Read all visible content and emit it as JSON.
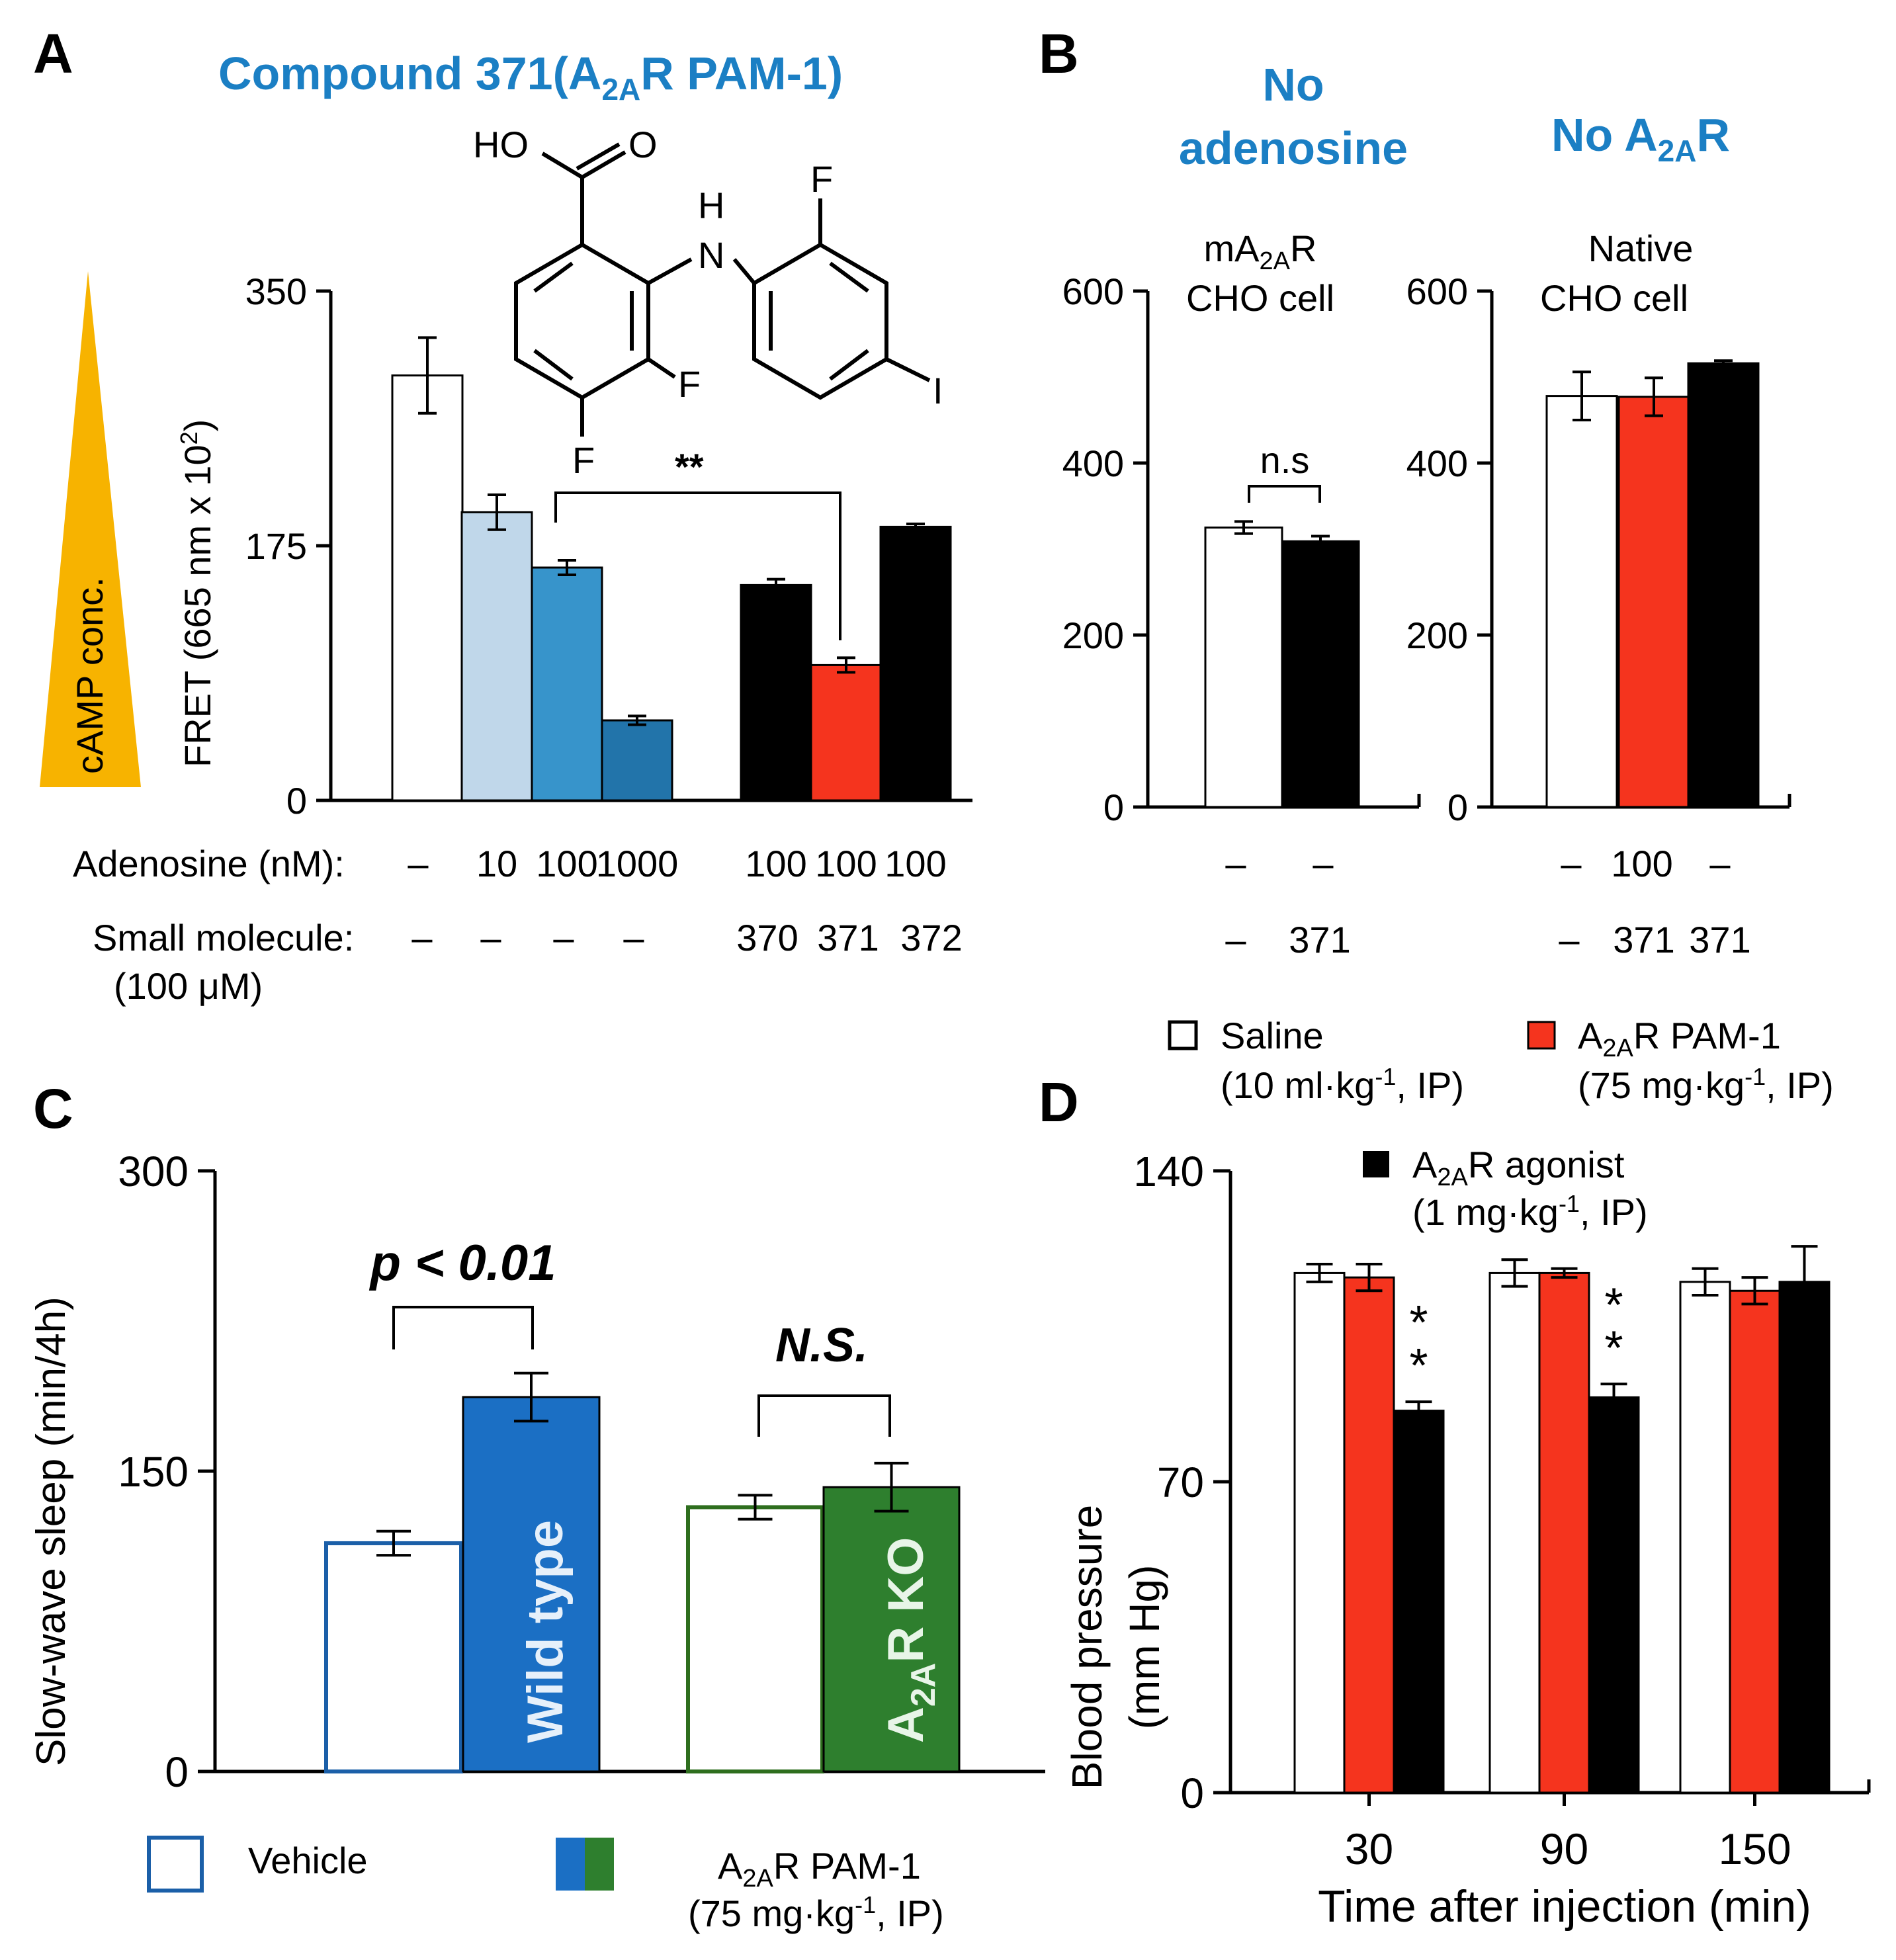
{
  "panels": {
    "A": {
      "label": "A",
      "title_main": "Compound 371(A",
      "title_sub": "2A",
      "title_end": "R PAM-1)",
      "triangle_label": "cAMP conc.",
      "triangle_color": "#f7b300",
      "ylabel": "FRET (665 nm x 10",
      "ylabel_sup": "2",
      "ylabel_end": ")",
      "structure_labels": [
        "HO",
        "O",
        "H",
        "N",
        "F",
        "F",
        "F",
        "I"
      ],
      "significance": "**",
      "row1_label": "Adenosine (nM):",
      "row1_values": [
        "–",
        "10",
        "100",
        "1000",
        "100",
        "100",
        "100"
      ],
      "row2_label": "Small molecule:",
      "row2_sub": "(100 μM)",
      "row2_values": [
        "–",
        "–",
        "–",
        "–",
        "370",
        "371",
        "372"
      ]
    },
    "B": {
      "label": "B",
      "title_left_1": "No",
      "title_left_2": "adenosine",
      "title_right_main": "No A",
      "title_right_sub": "2A",
      "title_right_end": "R",
      "left_cell_1": "mA",
      "left_cell_1_sub": "2A",
      "left_cell_1_end": "R",
      "left_cell_2": "CHO cell",
      "right_cell_1": "Native",
      "right_cell_2": "CHO cell",
      "ns_label": "n.s",
      "left_row1": [
        "–",
        "–"
      ],
      "left_row2": [
        "–",
        "371"
      ],
      "right_row1": [
        "–",
        "100",
        "–"
      ],
      "right_row2": [
        "–",
        "371",
        "371"
      ]
    },
    "C": {
      "label": "C",
      "ylabel": "Slow-wave sleep (min/4h)",
      "p_label": "p < 0.01",
      "ns_label": "N.S.",
      "wt_label": "Wild type",
      "ko_main": "A",
      "ko_sub": "2A",
      "ko_end": "R KO",
      "legend_vehicle": "Vehicle",
      "legend_pam_main": "A",
      "legend_pam_sub": "2A",
      "legend_pam_end": "R PAM-1",
      "legend_pam_dose": "(75 mg·kg",
      "legend_pam_dose_sup": "-1",
      "legend_pam_dose_end": ", IP)"
    },
    "D": {
      "label": "D",
      "ylabel_1": "Blood pressure",
      "ylabel_2": "(mm Hg)",
      "xlabel": "Time after injection (min)",
      "stars": "*",
      "legend_saline": "Saline",
      "legend_saline_dose": "(10 ml·kg",
      "legend_saline_dose_sup": "-1",
      "legend_saline_dose_end": ", IP)",
      "legend_pam_main": "A",
      "legend_pam_sub": "2A",
      "legend_pam_end": "R PAM-1",
      "legend_pam_dose": "(75 mg·kg",
      "legend_pam_dose_sup": "-1",
      "legend_pam_dose_end": ", IP)",
      "legend_agonist_main": "A",
      "legend_agonist_sub": "2A",
      "legend_agonist_end": "R agonist",
      "legend_agonist_dose": "(1 mg·kg",
      "legend_agonist_dose_sup": "-1",
      "legend_agonist_dose_end": ", IP)"
    }
  },
  "colors": {
    "white": "#ffffff",
    "light_blue": "#c0d7ea",
    "mid_blue": "#3794cb",
    "dark_blue": "#2274aa",
    "black": "#000000",
    "red": "#f5341e",
    "wt_blue": "#1b6fc4",
    "ko_green": "#2e7f2e",
    "edge_blue": "#1b5fa8",
    "edge_green": "#2e6e1e",
    "title_blue": "#1b7fc4"
  },
  "chart_data": [
    {
      "id": "A",
      "type": "bar",
      "ylabel": "FRET (665 nm x 10^2)",
      "ylim": [
        0,
        350
      ],
      "yticks": [
        0,
        175,
        350
      ],
      "bars": [
        {
          "adenosine": "–",
          "molecule": "–",
          "value": 292,
          "err": 26,
          "color": "white"
        },
        {
          "adenosine": "10",
          "molecule": "–",
          "value": 198,
          "err": 12,
          "color": "light_blue"
        },
        {
          "adenosine": "100",
          "molecule": "–",
          "value": 160,
          "err": 5,
          "color": "mid_blue"
        },
        {
          "adenosine": "1000",
          "molecule": "–",
          "value": 55,
          "err": 3,
          "color": "dark_blue"
        },
        {
          "adenosine": "100",
          "molecule": "370",
          "value": 148,
          "err": 4,
          "color": "black"
        },
        {
          "adenosine": "100",
          "molecule": "371",
          "value": 93,
          "err": 5,
          "color": "red"
        },
        {
          "adenosine": "100",
          "molecule": "372",
          "value": 188,
          "err": 2,
          "color": "black"
        }
      ]
    },
    {
      "id": "B-left",
      "type": "bar",
      "ylim": [
        0,
        600
      ],
      "yticks": [
        0,
        200,
        400,
        600
      ],
      "bars": [
        {
          "value": 325,
          "err": 7,
          "color": "white"
        },
        {
          "value": 309,
          "err": 6,
          "color": "black"
        }
      ]
    },
    {
      "id": "B-right",
      "type": "bar",
      "ylim": [
        0,
        600
      ],
      "yticks": [
        0,
        200,
        400,
        600
      ],
      "bars": [
        {
          "value": 478,
          "err": 28,
          "color": "white"
        },
        {
          "value": 477,
          "err": 22,
          "color": "red"
        },
        {
          "value": 516,
          "err": 3,
          "color": "black"
        }
      ]
    },
    {
      "id": "C",
      "type": "bar",
      "ylabel": "Slow-wave sleep (min/4h)",
      "ylim": [
        0,
        300
      ],
      "yticks": [
        0,
        150,
        300
      ],
      "groups": [
        "Wild type",
        "A2AR KO"
      ],
      "series": [
        {
          "name": "Vehicle",
          "values": [
            114,
            132
          ],
          "err": [
            6,
            6
          ]
        },
        {
          "name": "A2AR PAM-1",
          "values": [
            187,
            142
          ],
          "err": [
            12,
            12
          ]
        }
      ]
    },
    {
      "id": "D",
      "type": "bar",
      "ylabel": "Blood pressure (mm Hg)",
      "xlabel": "Time after injection (min)",
      "ylim": [
        0,
        140
      ],
      "yticks": [
        0,
        70,
        140
      ],
      "categories": [
        "30",
        "90",
        "150"
      ],
      "series": [
        {
          "name": "Saline",
          "values": [
            117,
            117,
            115
          ],
          "err": [
            2,
            3,
            3
          ]
        },
        {
          "name": "A2AR PAM-1",
          "values": [
            116,
            117,
            113
          ],
          "err": [
            3,
            1,
            3
          ]
        },
        {
          "name": "A2AR agonist",
          "values": [
            86,
            89,
            115
          ],
          "err": [
            2,
            3,
            8
          ]
        }
      ]
    }
  ]
}
